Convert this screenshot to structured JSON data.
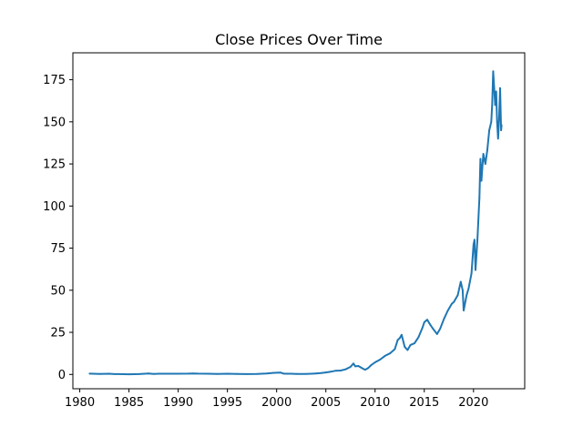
{
  "chart_data": {
    "type": "line",
    "title": "Close Prices Over Time",
    "xlabel": "",
    "ylabel": "",
    "xlim": [
      1979.3,
      2025.2
    ],
    "ylim": [
      -8.5,
      191
    ],
    "grid": false,
    "x_ticks": [
      1980,
      1985,
      1990,
      1995,
      2000,
      2005,
      2010,
      2015,
      2020
    ],
    "x_tick_labels": [
      "1980",
      "1985",
      "1990",
      "1995",
      "2000",
      "2005",
      "2010",
      "2015",
      "2020"
    ],
    "y_ticks": [
      0,
      25,
      50,
      75,
      100,
      125,
      150,
      175
    ],
    "y_tick_labels": [
      "0",
      "25",
      "50",
      "75",
      "100",
      "125",
      "150",
      "175"
    ],
    "series": [
      {
        "color": "#1f77b4",
        "x": [
          1981.0,
          1982.0,
          1983.0,
          1983.5,
          1984.0,
          1985.0,
          1986.0,
          1987.0,
          1987.5,
          1988.0,
          1989.0,
          1990.0,
          1991.0,
          1991.5,
          1992.0,
          1993.0,
          1994.0,
          1995.0,
          1996.0,
          1997.0,
          1998.0,
          1999.0,
          1999.6,
          2000.0,
          2000.4,
          2000.7,
          2001.0,
          2001.5,
          2002.0,
          2003.0,
          2003.5,
          2004.0,
          2004.5,
          2005.0,
          2005.5,
          2006.0,
          2006.5,
          2007.0,
          2007.5,
          2007.8,
          2008.0,
          2008.3,
          2008.6,
          2008.9,
          2009.0,
          2009.3,
          2009.6,
          2010.0,
          2010.5,
          2011.0,
          2011.5,
          2012.0,
          2012.3,
          2012.5,
          2012.7,
          2013.0,
          2013.3,
          2013.6,
          2014.0,
          2014.4,
          2014.8,
          2015.0,
          2015.3,
          2015.6,
          2015.9,
          2016.3,
          2016.6,
          2017.0,
          2017.4,
          2017.8,
          2018.0,
          2018.4,
          2018.7,
          2018.9,
          2019.0,
          2019.3,
          2019.5,
          2019.8,
          2020.0,
          2020.1,
          2020.2,
          2020.4,
          2020.6,
          2020.7,
          2020.8,
          2020.9,
          2021.0,
          2021.2,
          2021.4,
          2021.6,
          2021.8,
          2021.9,
          2022.0,
          2022.1,
          2022.2,
          2022.3,
          2022.4,
          2022.5,
          2022.6,
          2022.7,
          2022.8,
          2022.85
        ],
        "y": [
          0.5,
          0.3,
          0.4,
          0.2,
          0.2,
          0.1,
          0.2,
          0.6,
          0.3,
          0.4,
          0.4,
          0.4,
          0.5,
          0.6,
          0.5,
          0.4,
          0.3,
          0.4,
          0.3,
          0.2,
          0.3,
          0.6,
          0.9,
          1.0,
          1.1,
          0.5,
          0.4,
          0.4,
          0.3,
          0.3,
          0.4,
          0.6,
          0.8,
          1.2,
          1.6,
          2.2,
          2.3,
          3.0,
          4.5,
          6.5,
          4.8,
          5.0,
          4.0,
          3.0,
          2.8,
          3.8,
          5.5,
          7.2,
          8.8,
          11.0,
          12.5,
          15.0,
          20.5,
          21.5,
          23.5,
          16.5,
          14.5,
          17.5,
          18.5,
          22.0,
          27.5,
          31.0,
          32.5,
          29.5,
          27.0,
          24.0,
          27.0,
          33.0,
          38.0,
          42.0,
          43.0,
          47.0,
          55.0,
          50.0,
          38.0,
          47.0,
          51.0,
          60.0,
          77.0,
          80.0,
          62.0,
          80.0,
          105.0,
          128.0,
          115.0,
          123.0,
          131.0,
          125.0,
          133.0,
          145.0,
          150.0,
          160.0,
          180.0,
          170.0,
          160.0,
          168.0,
          150.0,
          140.0,
          152.0,
          170.0,
          145.0,
          148.0
        ]
      }
    ]
  }
}
